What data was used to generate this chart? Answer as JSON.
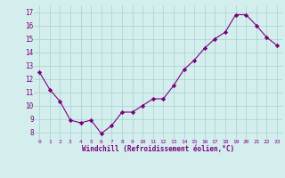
{
  "x": [
    0,
    1,
    2,
    3,
    4,
    5,
    6,
    7,
    8,
    9,
    10,
    11,
    12,
    13,
    14,
    15,
    16,
    17,
    18,
    19,
    20,
    21,
    22,
    23
  ],
  "y": [
    12.5,
    11.2,
    10.3,
    8.9,
    8.7,
    8.9,
    7.9,
    8.5,
    9.5,
    9.5,
    10.0,
    10.5,
    10.5,
    11.5,
    12.7,
    13.4,
    14.3,
    15.0,
    15.5,
    16.8,
    16.8,
    16.0,
    15.1,
    14.5
  ],
  "line_color": "#7B007B",
  "marker": "D",
  "marker_size": 2.2,
  "bg_color": "#d4eeee",
  "grid_color": "#aed4d4",
  "xlabel": "Windchill (Refroidissement éolien,°C)",
  "xlabel_color": "#7B007B",
  "tick_color": "#7B007B",
  "ylim": [
    7.5,
    17.5
  ],
  "yticks": [
    8,
    9,
    10,
    11,
    12,
    13,
    14,
    15,
    16,
    17
  ],
  "xlim": [
    -0.5,
    23.5
  ],
  "xticks": [
    0,
    1,
    2,
    3,
    4,
    5,
    6,
    7,
    8,
    9,
    10,
    11,
    12,
    13,
    14,
    15,
    16,
    17,
    18,
    19,
    20,
    21,
    22,
    23
  ]
}
